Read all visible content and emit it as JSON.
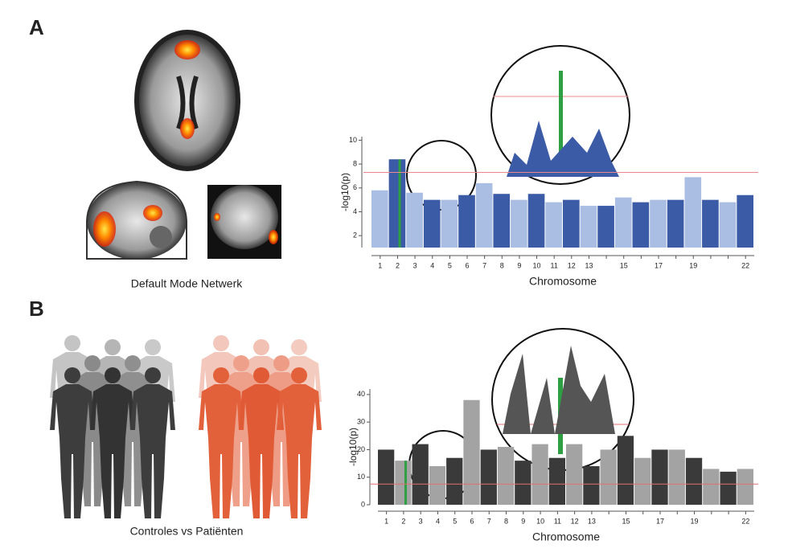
{
  "panel_a": {
    "label": "A",
    "caption": "Default Mode Netwerk",
    "chart_data": {
      "type": "manhattan",
      "y_label": "-log10(p)",
      "x_label": "Chromosome",
      "categories": [
        "1",
        "2",
        "3",
        "4",
        "5",
        "6",
        "7",
        "8",
        "9",
        "10",
        "11",
        "12",
        "13",
        null,
        "15",
        null,
        "17",
        null,
        "19",
        null,
        null,
        "22"
      ],
      "values": [
        5.8,
        8.4,
        5.6,
        5.0,
        5.0,
        5.4,
        6.4,
        5.5,
        5.0,
        5.5,
        4.8,
        5.0,
        4.5,
        4.5,
        5.2,
        4.8,
        5.0,
        5.0,
        6.9,
        5.0,
        4.8,
        5.4
      ],
      "colors": [
        "#aabde2",
        "#3b5ba6"
      ],
      "highlight_index": 1,
      "highlight_color": "#2ea043",
      "threshold": 7.3,
      "threshold_color": "#e88a8a",
      "ylim": [
        1,
        10.3
      ],
      "yticks": [
        2,
        4,
        6,
        8,
        10
      ]
    }
  },
  "panel_b": {
    "label": "B",
    "caption": "Controles vs Patiënten",
    "chart_data": {
      "type": "manhattan",
      "y_label": "-log10(p)",
      "x_label": "Chromosome",
      "categories": [
        "1",
        "2",
        "3",
        "4",
        "5",
        "6",
        "7",
        "8",
        "9",
        "10",
        "11",
        "12",
        "13",
        null,
        "15",
        null,
        "17",
        null,
        "19",
        null,
        null,
        "22"
      ],
      "values": [
        20,
        16,
        22,
        14,
        17,
        38,
        20,
        21,
        16,
        22,
        17,
        22,
        14,
        20,
        25,
        17,
        20,
        20,
        17,
        13,
        12,
        13
      ],
      "colors": [
        "#3a3a3a",
        "#a3a3a3"
      ],
      "highlight_index": 1,
      "highlight_color": "#2ea043",
      "threshold": 7.5,
      "threshold_color": "#e07070",
      "ylim": [
        0,
        42
      ],
      "yticks": [
        0,
        10,
        20,
        30,
        40
      ]
    }
  }
}
